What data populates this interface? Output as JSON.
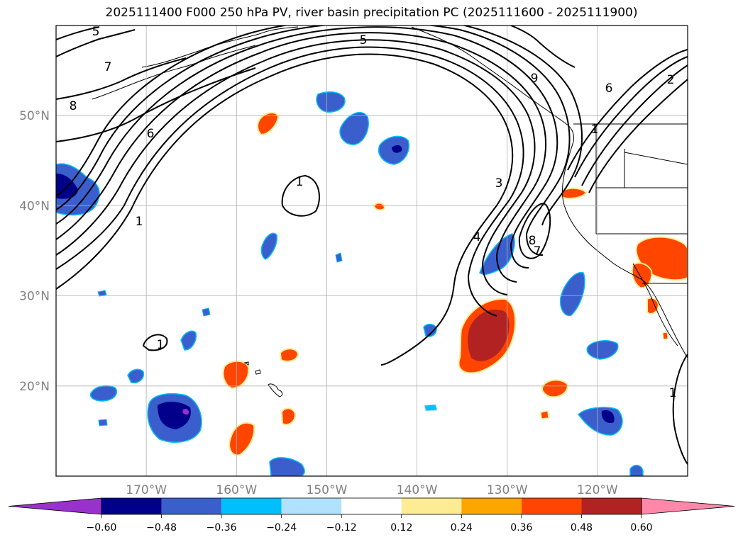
{
  "title": "2025111400 F000 250 hPa PV, river basin precipitation PC (2025111600 - 2025111900)",
  "map": {
    "lon_range": [
      -180,
      -110
    ],
    "lat_range": [
      10,
      60
    ],
    "lon_ticks": [
      {
        "value": -170,
        "label": "170°W"
      },
      {
        "value": -160,
        "label": "160°W"
      },
      {
        "value": -150,
        "label": "150°W"
      },
      {
        "value": -140,
        "label": "140°W"
      },
      {
        "value": -130,
        "label": "130°W"
      },
      {
        "value": -120,
        "label": "120°W"
      }
    ],
    "lat_ticks": [
      {
        "value": 20,
        "label": "20°N"
      },
      {
        "value": 30,
        "label": "30°N"
      },
      {
        "value": 40,
        "label": "40°N"
      },
      {
        "value": 50,
        "label": "50°N"
      }
    ],
    "contour_labels": [
      "5",
      "7",
      "8",
      "6",
      "1",
      "1",
      "1",
      "5",
      "3",
      "9",
      "8",
      "2",
      "4",
      "7",
      "6",
      "1",
      "1"
    ]
  },
  "colorbar": {
    "tick_labels": [
      "−0.60",
      "−0.48",
      "−0.36",
      "−0.24",
      "−0.12",
      "0.12",
      "0.24",
      "0.36",
      "0.48",
      "0.60"
    ],
    "colors": [
      "#9932cc",
      "#00008b",
      "#3a5fcd",
      "#00bfff",
      "#b0e2ff",
      "#ffffff",
      "#fdec91",
      "#ffa500",
      "#ff4500",
      "#b22222",
      "#ff88aa"
    ]
  },
  "chart_data": {
    "type": "map",
    "title": "2025111400 F000 250 hPa PV, river basin precipitation PC (2025111600 - 2025111900)",
    "field_contours": "250 hPa PV",
    "field_shaded": "river basin precipitation PC",
    "levels": [
      -0.6,
      -0.48,
      -0.36,
      -0.24,
      -0.12,
      0.12,
      0.24,
      0.36,
      0.48,
      0.6
    ],
    "xlim": [
      -180,
      -110
    ],
    "ylim": [
      10,
      60
    ]
  }
}
